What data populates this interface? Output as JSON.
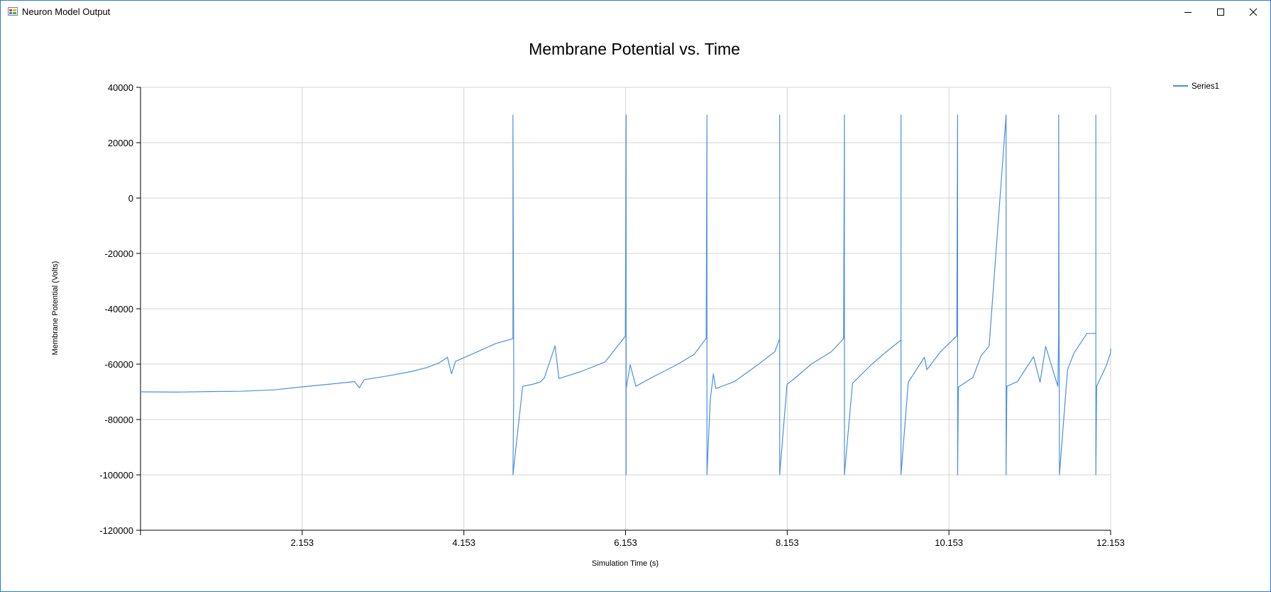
{
  "window": {
    "title": "Neuron Model Output",
    "icon": "winforms-app-icon",
    "controls": [
      "minimize-icon",
      "maximize-icon",
      "close-icon"
    ]
  },
  "chart_data": {
    "type": "line",
    "title": "Membrane Potential vs. Time",
    "xlabel": "Simulation Time (s)",
    "ylabel": "Membrane Potential (Volts)",
    "xlim": [
      0.153,
      12.153
    ],
    "ylim": [
      -120000,
      40000
    ],
    "xticks": [
      "2.153",
      "4.153",
      "6.153",
      "8.153",
      "10.153",
      "12.153"
    ],
    "yticks": [
      "40000",
      "20000",
      "0",
      "-20000",
      "-40000",
      "-60000",
      "-80000",
      "-100000",
      "-120000"
    ],
    "grid": true,
    "legend_position": "top-right",
    "series_color": "#4a90e2",
    "series": [
      {
        "name": "Series1",
        "points": [
          [
            0.153,
            -70000
          ],
          [
            0.6,
            -70100
          ],
          [
            1.0,
            -69900
          ],
          [
            1.4,
            -69800
          ],
          [
            1.8,
            -69300
          ],
          [
            2.153,
            -68200
          ],
          [
            2.5,
            -67200
          ],
          [
            2.8,
            -66300
          ],
          [
            2.86,
            -68500
          ],
          [
            2.92,
            -65600
          ],
          [
            3.2,
            -64300
          ],
          [
            3.5,
            -62700
          ],
          [
            3.7,
            -61200
          ],
          [
            3.85,
            -59500
          ],
          [
            3.95,
            -57500
          ],
          [
            4.0,
            -63500
          ],
          [
            4.05,
            -59000
          ],
          [
            4.3,
            -55800
          ],
          [
            4.55,
            -52500
          ],
          [
            4.7,
            -51300
          ],
          [
            4.76,
            -50800
          ],
          [
            4.76,
            30000
          ],
          [
            4.77,
            -68000
          ],
          [
            4.76,
            -100000
          ],
          [
            4.88,
            -68000
          ],
          [
            5.0,
            -67300
          ],
          [
            5.1,
            -66400
          ],
          [
            5.15,
            -64900
          ],
          [
            5.28,
            -53400
          ],
          [
            5.33,
            -65200
          ],
          [
            5.6,
            -62700
          ],
          [
            5.9,
            -59200
          ],
          [
            6.15,
            -49900
          ],
          [
            6.16,
            30000
          ],
          [
            6.16,
            -100000
          ],
          [
            6.16,
            -68900
          ],
          [
            6.21,
            -60200
          ],
          [
            6.28,
            -68000
          ],
          [
            6.5,
            -64500
          ],
          [
            6.8,
            -60000
          ],
          [
            7.0,
            -56500
          ],
          [
            7.15,
            -50700
          ],
          [
            7.16,
            30000
          ],
          [
            7.16,
            -100000
          ],
          [
            7.2,
            -73000
          ],
          [
            7.24,
            -63500
          ],
          [
            7.27,
            -68800
          ],
          [
            7.5,
            -66300
          ],
          [
            7.8,
            -60000
          ],
          [
            8.0,
            -55500
          ],
          [
            8.06,
            -50800
          ],
          [
            8.06,
            30000
          ],
          [
            8.06,
            -100000
          ],
          [
            8.15,
            -67300
          ],
          [
            8.25,
            -65000
          ],
          [
            8.45,
            -60000
          ],
          [
            8.7,
            -55500
          ],
          [
            8.85,
            -50800
          ],
          [
            8.86,
            30000
          ],
          [
            8.86,
            -100000
          ],
          [
            8.96,
            -66900
          ],
          [
            9.2,
            -60000
          ],
          [
            9.4,
            -55000
          ],
          [
            9.56,
            -51300
          ],
          [
            9.56,
            30000
          ],
          [
            9.56,
            -100000
          ],
          [
            9.65,
            -66500
          ],
          [
            9.85,
            -57500
          ],
          [
            9.88,
            -62000
          ],
          [
            10.05,
            -55500
          ],
          [
            10.25,
            -49800
          ],
          [
            10.26,
            30000
          ],
          [
            10.26,
            -100000
          ],
          [
            10.27,
            -68300
          ],
          [
            10.45,
            -64800
          ],
          [
            10.55,
            -57000
          ],
          [
            10.65,
            -53500
          ],
          [
            10.86,
            30000
          ],
          [
            10.86,
            -100000
          ],
          [
            10.87,
            -68000
          ],
          [
            11.0,
            -66300
          ],
          [
            11.2,
            -57300
          ],
          [
            11.28,
            -66500
          ],
          [
            11.35,
            -53600
          ],
          [
            11.5,
            -68000
          ],
          [
            11.51,
            -49200
          ],
          [
            11.51,
            30000
          ],
          [
            11.52,
            -100000
          ],
          [
            11.62,
            -62000
          ],
          [
            11.7,
            -56000
          ],
          [
            11.86,
            -48900
          ],
          [
            11.97,
            -48900
          ],
          [
            11.97,
            30000
          ],
          [
            11.97,
            -100000
          ],
          [
            11.98,
            -68000
          ],
          [
            12.1,
            -60500
          ],
          [
            12.153,
            -55800
          ],
          [
            12.153,
            -54300
          ]
        ]
      }
    ]
  }
}
